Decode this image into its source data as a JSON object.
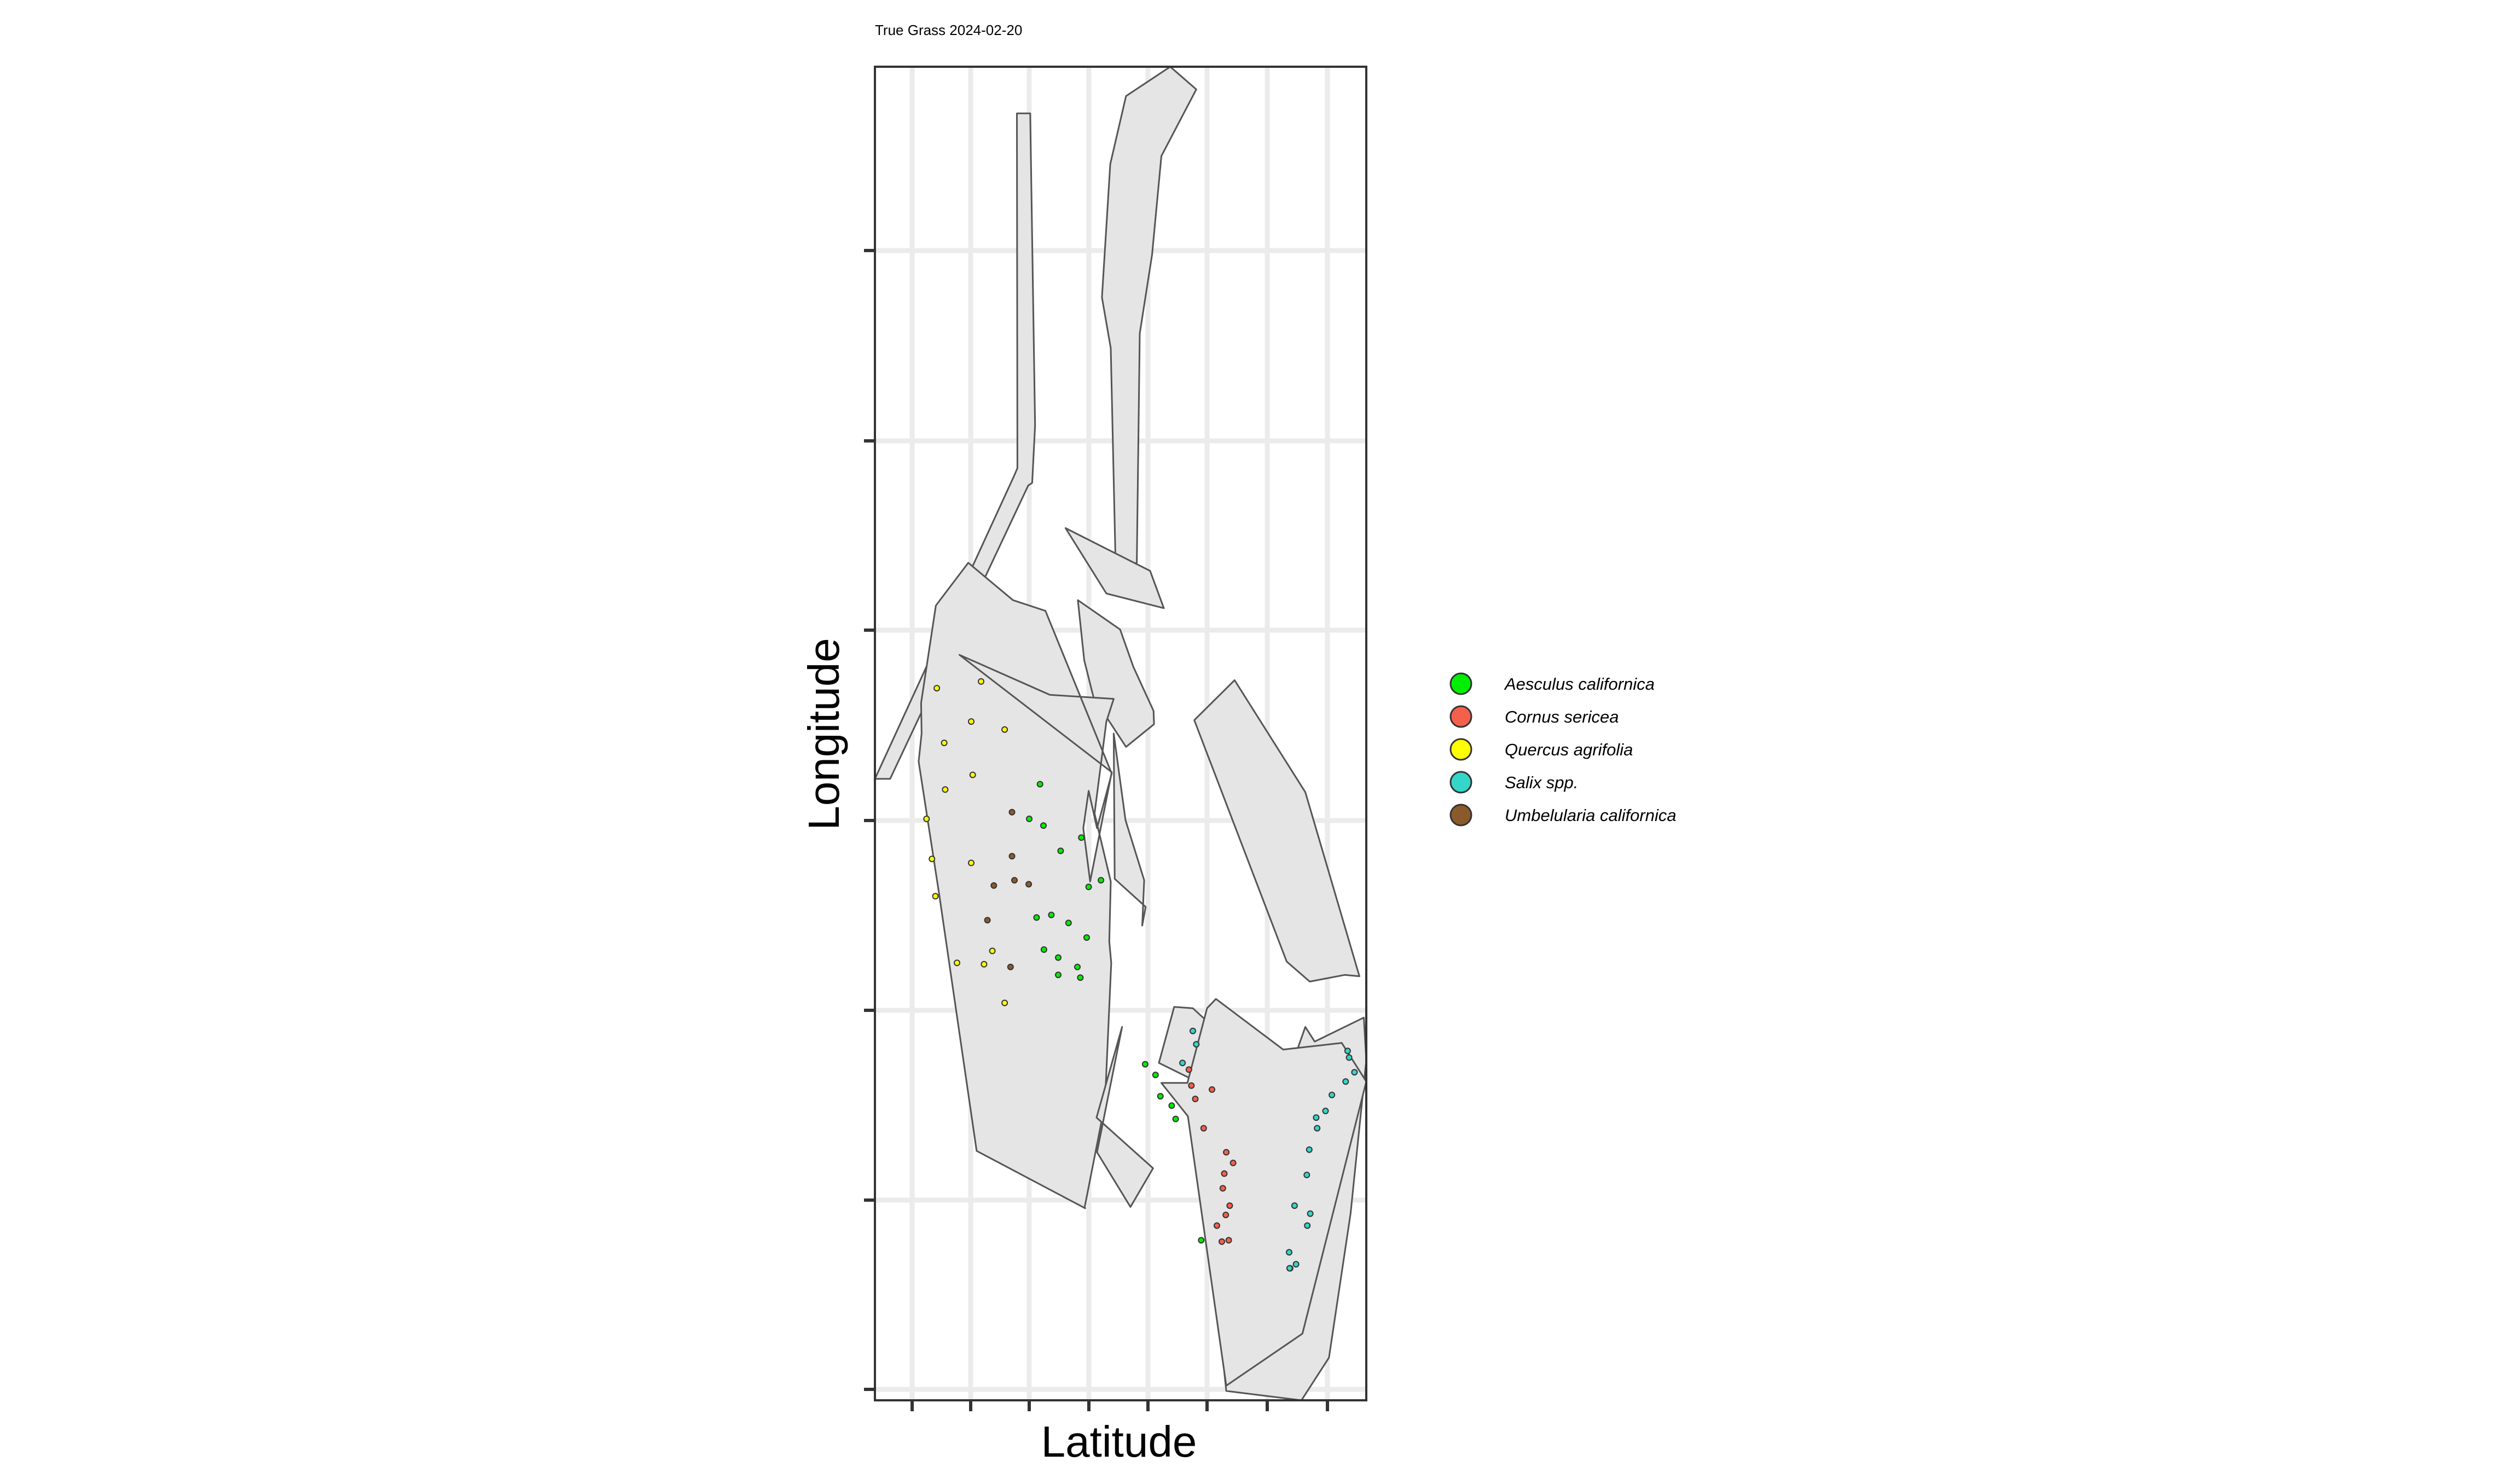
{
  "chart_data": {
    "type": "scatter",
    "title": "True Grass 2024-02-20",
    "xlabel": "Latitude",
    "ylabel": "Longitude",
    "xlim": [
      0,
      1
    ],
    "ylim": [
      0,
      1
    ],
    "x_tick_labels": [
      "",
      "",
      "",
      "",
      "",
      "",
      "",
      ""
    ],
    "y_tick_labels": [
      "",
      "",
      "",
      "",
      "",
      "",
      ""
    ],
    "grid": true,
    "legend_position": "right",
    "polygon_fill": "#e5e5e5",
    "polygon_stroke": "#555555",
    "species": [
      {
        "name": "Aesculus californica",
        "color": "#00ee00"
      },
      {
        "name": "Cornus sericea",
        "color": "#f4604c"
      },
      {
        "name": "Quercus agrifolia",
        "color": "#ffff00"
      },
      {
        "name": "Salix spp.",
        "color": "#33d6c8"
      },
      {
        "name": "Umbelularia californica",
        "color": "#8b5a2b"
      }
    ],
    "plots": [
      [
        [
          0.289,
          0.965
        ],
        [
          0.316,
          0.965
        ],
        [
          0.326,
          0.731
        ],
        [
          0.32,
          0.688
        ],
        [
          0.312,
          0.686
        ],
        [
          0.031,
          0.466
        ],
        [
          0,
          0.466
        ],
        [
          0.283,
          0.693
        ],
        [
          0.29,
          0.699
        ]
      ],
      [
        [
          0.601,
          1
        ],
        [
          0.654,
          0.983
        ],
        [
          0.583,
          0.933
        ],
        [
          0.564,
          0.859
        ],
        [
          0.539,
          0.8
        ],
        [
          0.533,
          0.628
        ],
        [
          0.49,
          0.624
        ],
        [
          0.48,
          0.789
        ],
        [
          0.462,
          0.827
        ],
        [
          0.479,
          0.927
        ],
        [
          0.511,
          0.978
        ]
      ],
      [
        [
          0.388,
          0.654
        ],
        [
          0.471,
          0.605
        ],
        [
          0.588,
          0.594
        ],
        [
          0.56,
          0.622
        ]
      ],
      [
        [
          0.413,
          0.6
        ],
        [
          0.426,
          0.555
        ],
        [
          0.447,
          0.524
        ],
        [
          0.47,
          0.513
        ],
        [
          0.511,
          0.49
        ],
        [
          0.568,
          0.507
        ],
        [
          0.567,
          0.517
        ],
        [
          0.526,
          0.55
        ],
        [
          0.499,
          0.578
        ]
      ],
      [
        [
          0.172,
          0.559
        ],
        [
          0.356,
          0.529
        ],
        [
          0.486,
          0.526
        ],
        [
          0.471,
          0.509
        ],
        [
          0.447,
          0.44
        ],
        [
          0.48,
          0.389
        ],
        [
          0.477,
          0.344
        ],
        [
          0.481,
          0.328
        ],
        [
          0.468,
          0.222
        ],
        [
          0.427,
          0.145
        ],
        [
          0.428,
          0.144
        ],
        [
          0.207,
          0.187
        ],
        [
          0.131,
          0.379
        ],
        [
          0.089,
          0.479
        ],
        [
          0.095,
          0.5
        ],
        [
          0.094,
          0.523
        ],
        [
          0.124,
          0.596
        ],
        [
          0.19,
          0.628
        ],
        [
          0.281,
          0.6
        ],
        [
          0.347,
          0.592
        ],
        [
          0.482,
          0.47
        ],
        [
          0.452,
          0.429
        ],
        [
          0.435,
          0.457
        ],
        [
          0.424,
          0.429
        ],
        [
          0.438,
          0.389
        ],
        [
          0.482,
          0.471
        ]
      ],
      [
        [
          0.65,
          0.51
        ],
        [
          0.838,
          0.329
        ],
        [
          0.885,
          0.314
        ],
        [
          0.956,
          0.319
        ],
        [
          0.986,
          0.318
        ],
        [
          0.876,
          0.456
        ],
        [
          0.732,
          0.54
        ]
      ],
      [
        [
          0.486,
          0.5
        ],
        [
          0.488,
          0.391
        ],
        [
          0.551,
          0.37
        ],
        [
          0.544,
          0.356
        ],
        [
          0.548,
          0.39
        ],
        [
          0.51,
          0.435
        ]
      ],
      [
        [
          0.503,
          0.28
        ],
        [
          0.451,
          0.212
        ],
        [
          0.566,
          0.174
        ],
        [
          0.52,
          0.145
        ],
        [
          0.452,
          0.186
        ]
      ],
      [
        [
          0.578,
          0.253
        ],
        [
          0.609,
          0.295
        ],
        [
          0.647,
          0.294
        ],
        [
          0.718,
          0.27
        ],
        [
          0.812,
          0.252
        ],
        [
          0.85,
          0.253
        ],
        [
          0.876,
          0.28
        ],
        [
          0.895,
          0.269
        ],
        [
          0.995,
          0.287
        ],
        [
          1,
          0.255
        ],
        [
          0.968,
          0.14
        ],
        [
          0.924,
          0.032
        ],
        [
          0.868,
          0
        ],
        [
          0.715,
          0.007
        ],
        [
          0.66,
          0.201
        ],
        [
          0.655,
          0.239
        ]
      ],
      [
        [
          0.636,
          0.238
        ],
        [
          0.676,
          0.294
        ],
        [
          0.694,
          0.301
        ],
        [
          0.831,
          0.263
        ],
        [
          0.879,
          0.265
        ],
        [
          0.95,
          0.268
        ],
        [
          1,
          0.239
        ],
        [
          0.87,
          0.05
        ],
        [
          0.715,
          0.011
        ],
        [
          0.637,
          0.213
        ],
        [
          0.583,
          0.238
        ]
      ]
    ],
    "points": [
      {
        "x": 0.126,
        "y": 0.534,
        "s": 2
      },
      {
        "x": 0.216,
        "y": 0.539,
        "s": 2
      },
      {
        "x": 0.196,
        "y": 0.509,
        "s": 2
      },
      {
        "x": 0.141,
        "y": 0.493,
        "s": 2
      },
      {
        "x": 0.264,
        "y": 0.503,
        "s": 2
      },
      {
        "x": 0.105,
        "y": 0.436,
        "s": 2
      },
      {
        "x": 0.199,
        "y": 0.469,
        "s": 2
      },
      {
        "x": 0.143,
        "y": 0.458,
        "s": 2
      },
      {
        "x": 0.116,
        "y": 0.406,
        "s": 2
      },
      {
        "x": 0.196,
        "y": 0.403,
        "s": 2
      },
      {
        "x": 0.123,
        "y": 0.378,
        "s": 2
      },
      {
        "x": 0.167,
        "y": 0.328,
        "s": 2
      },
      {
        "x": 0.239,
        "y": 0.337,
        "s": 2
      },
      {
        "x": 0.264,
        "y": 0.298,
        "s": 2
      },
      {
        "x": 0.222,
        "y": 0.327,
        "s": 2
      },
      {
        "x": 0.336,
        "y": 0.462,
        "s": 0
      },
      {
        "x": 0.314,
        "y": 0.436,
        "s": 0
      },
      {
        "x": 0.343,
        "y": 0.431,
        "s": 0
      },
      {
        "x": 0.42,
        "y": 0.422,
        "s": 0
      },
      {
        "x": 0.378,
        "y": 0.412,
        "s": 0
      },
      {
        "x": 0.435,
        "y": 0.385,
        "s": 0
      },
      {
        "x": 0.359,
        "y": 0.364,
        "s": 0
      },
      {
        "x": 0.394,
        "y": 0.358,
        "s": 0
      },
      {
        "x": 0.329,
        "y": 0.362,
        "s": 0
      },
      {
        "x": 0.431,
        "y": 0.347,
        "s": 0
      },
      {
        "x": 0.344,
        "y": 0.338,
        "s": 0
      },
      {
        "x": 0.373,
        "y": 0.332,
        "s": 0
      },
      {
        "x": 0.412,
        "y": 0.325,
        "s": 0
      },
      {
        "x": 0.373,
        "y": 0.319,
        "s": 0
      },
      {
        "x": 0.418,
        "y": 0.317,
        "s": 0
      },
      {
        "x": 0.46,
        "y": 0.39,
        "s": 0
      },
      {
        "x": 0.55,
        "y": 0.252,
        "s": 0
      },
      {
        "x": 0.571,
        "y": 0.244,
        "s": 0
      },
      {
        "x": 0.581,
        "y": 0.228,
        "s": 0
      },
      {
        "x": 0.604,
        "y": 0.221,
        "s": 0
      },
      {
        "x": 0.664,
        "y": 0.12,
        "s": 0
      },
      {
        "x": 0.612,
        "y": 0.211,
        "s": 0
      },
      {
        "x": 0.279,
        "y": 0.441,
        "s": 4
      },
      {
        "x": 0.279,
        "y": 0.408,
        "s": 4
      },
      {
        "x": 0.242,
        "y": 0.386,
        "s": 4
      },
      {
        "x": 0.313,
        "y": 0.387,
        "s": 4
      },
      {
        "x": 0.229,
        "y": 0.36,
        "s": 4
      },
      {
        "x": 0.276,
        "y": 0.325,
        "s": 4
      },
      {
        "x": 0.284,
        "y": 0.39,
        "s": 4
      },
      {
        "x": 0.639,
        "y": 0.248,
        "s": 1
      },
      {
        "x": 0.644,
        "y": 0.236,
        "s": 1
      },
      {
        "x": 0.652,
        "y": 0.226,
        "s": 1
      },
      {
        "x": 0.669,
        "y": 0.204,
        "s": 1
      },
      {
        "x": 0.715,
        "y": 0.186,
        "s": 1
      },
      {
        "x": 0.729,
        "y": 0.178,
        "s": 1
      },
      {
        "x": 0.708,
        "y": 0.159,
        "s": 1
      },
      {
        "x": 0.714,
        "y": 0.139,
        "s": 1
      },
      {
        "x": 0.722,
        "y": 0.146,
        "s": 1
      },
      {
        "x": 0.696,
        "y": 0.131,
        "s": 1
      },
      {
        "x": 0.706,
        "y": 0.119,
        "s": 1
      },
      {
        "x": 0.686,
        "y": 0.233,
        "s": 1
      },
      {
        "x": 0.72,
        "y": 0.12,
        "s": 1
      },
      {
        "x": 0.711,
        "y": 0.17,
        "s": 1
      },
      {
        "x": 0.654,
        "y": 0.267,
        "s": 3
      },
      {
        "x": 0.626,
        "y": 0.253,
        "s": 3
      },
      {
        "x": 0.647,
        "y": 0.277,
        "s": 3
      },
      {
        "x": 0.93,
        "y": 0.229,
        "s": 3
      },
      {
        "x": 0.962,
        "y": 0.262,
        "s": 3
      },
      {
        "x": 0.976,
        "y": 0.246,
        "s": 3
      },
      {
        "x": 0.958,
        "y": 0.239,
        "s": 3
      },
      {
        "x": 0.898,
        "y": 0.212,
        "s": 3
      },
      {
        "x": 0.917,
        "y": 0.217,
        "s": 3
      },
      {
        "x": 0.884,
        "y": 0.188,
        "s": 3
      },
      {
        "x": 0.879,
        "y": 0.169,
        "s": 3
      },
      {
        "x": 0.9,
        "y": 0.204,
        "s": 3
      },
      {
        "x": 0.854,
        "y": 0.146,
        "s": 3
      },
      {
        "x": 0.886,
        "y": 0.14,
        "s": 3
      },
      {
        "x": 0.88,
        "y": 0.131,
        "s": 3
      },
      {
        "x": 0.843,
        "y": 0.111,
        "s": 3
      },
      {
        "x": 0.857,
        "y": 0.102,
        "s": 3
      },
      {
        "x": 0.845,
        "y": 0.099,
        "s": 3
      },
      {
        "x": 0.844,
        "y": 0.099,
        "s": 3
      },
      {
        "x": 0.965,
        "y": 0.257,
        "s": 3
      }
    ]
  }
}
